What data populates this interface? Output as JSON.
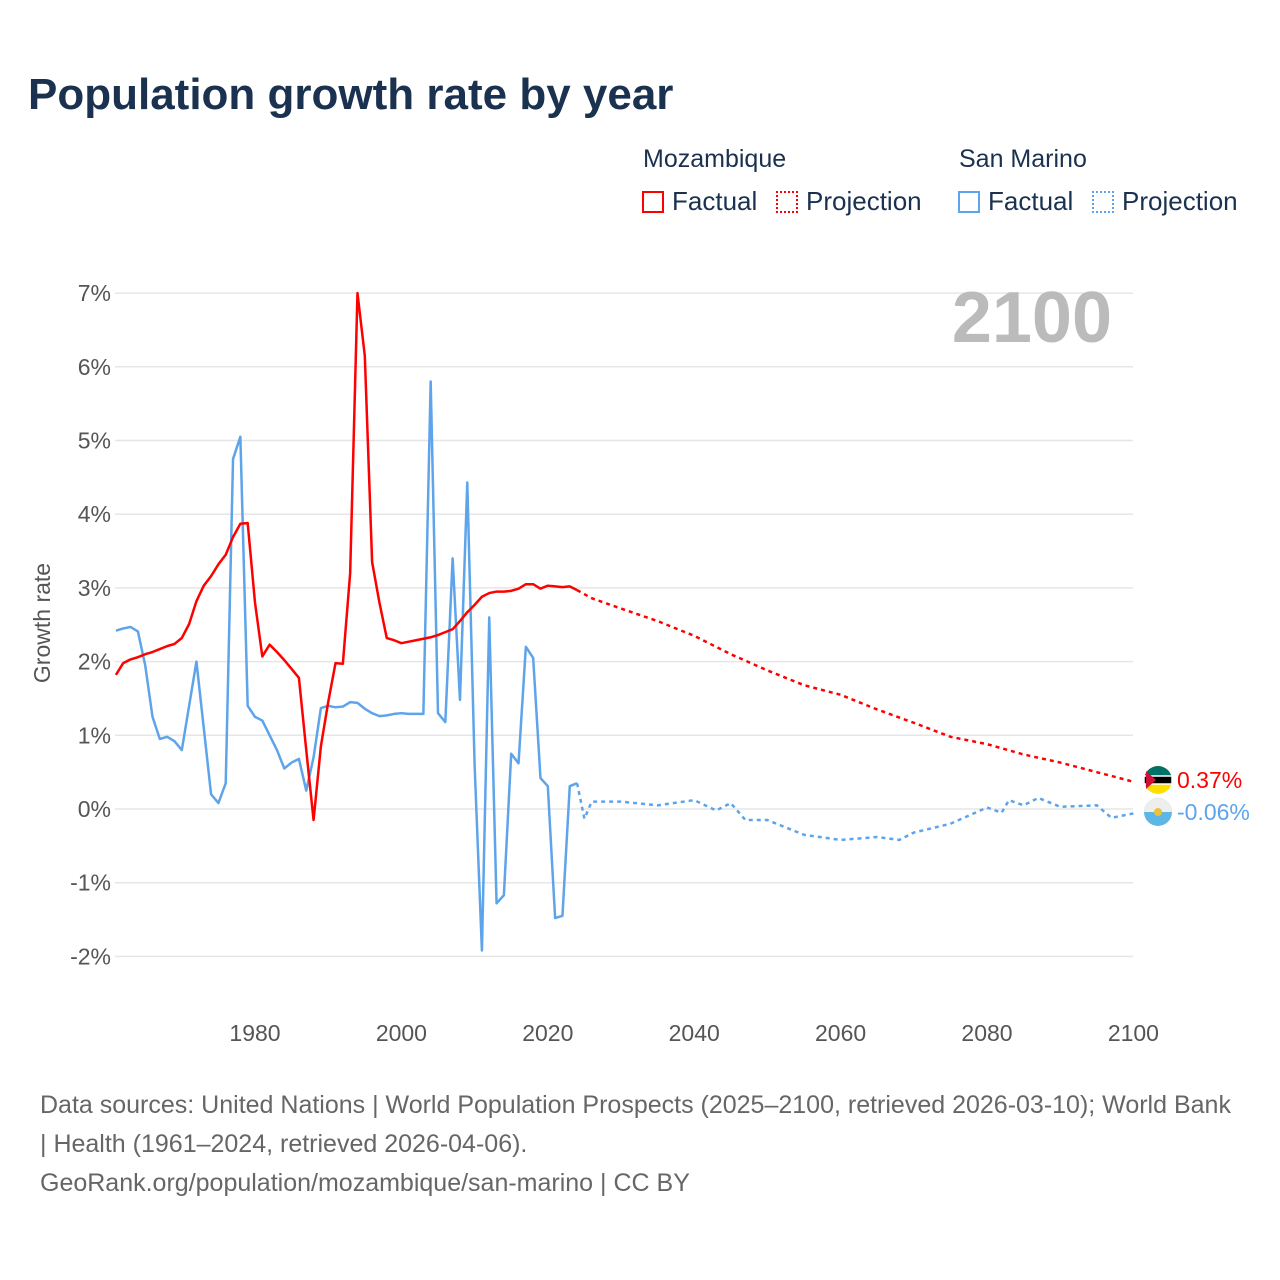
{
  "title": "Population growth rate by year",
  "legend": {
    "groups": [
      {
        "name": "Mozambique",
        "factual": "Factual",
        "projection": "Projection",
        "color": "#ff0000"
      },
      {
        "name": "San Marino",
        "factual": "Factual",
        "projection": "Projection",
        "color": "#5ea4ea"
      }
    ]
  },
  "year_label": "2100",
  "footer": {
    "line1": "Data sources: United Nations | World Population Prospects (2025–2100, retrieved 2026-03-10); World Bank | Health (1961–2024, retrieved 2026-04-06).",
    "line2": "GeoRank.org/population/mozambique/san-marino | CC BY"
  },
  "chart_data": {
    "type": "line",
    "title": "Population growth rate by year",
    "xlabel": "",
    "ylabel": "Growth rate",
    "xlim": [
      1961,
      2100
    ],
    "ylim": [
      -2.5,
      7.3
    ],
    "xticks": [
      1980,
      2000,
      2020,
      2040,
      2060,
      2080,
      2100
    ],
    "xtick_labels": [
      "1980",
      "2000",
      "2020",
      "2040",
      "2060",
      "2080",
      "2100"
    ],
    "yticks": [
      -2,
      -1,
      0,
      1,
      2,
      3,
      4,
      5,
      6,
      7
    ],
    "ytick_labels": [
      "-2%",
      "-1%",
      "0%",
      "1%",
      "2%",
      "3%",
      "4%",
      "5%",
      "6%",
      "7%"
    ],
    "series": [
      {
        "name": "Mozambique",
        "color": "#ff0000",
        "end_label": "0.37%",
        "factual": {
          "start_year": 1961,
          "values": [
            1.82,
            1.98,
            2.03,
            2.06,
            2.1,
            2.13,
            2.17,
            2.21,
            2.24,
            2.32,
            2.51,
            2.82,
            3.03,
            3.16,
            3.32,
            3.45,
            3.69,
            3.87,
            3.88,
            2.8,
            2.07,
            2.23,
            2.13,
            2.02,
            1.9,
            1.78,
            0.8,
            -0.15,
            0.85,
            1.45,
            1.98,
            1.97,
            3.2,
            7.0,
            6.15,
            3.35,
            2.8,
            2.32,
            2.29,
            2.25,
            2.27,
            2.29,
            2.31,
            2.33,
            2.36,
            2.4,
            2.44,
            2.55,
            2.67,
            2.77,
            2.88,
            2.93,
            2.95,
            2.95,
            2.96,
            2.99,
            3.05,
            3.05,
            2.99,
            3.03,
            3.02,
            3.01,
            3.02,
            2.97
          ]
        },
        "projection": {
          "years": [
            2024,
            2026,
            2030,
            2035,
            2040,
            2045,
            2050,
            2055,
            2060,
            2065,
            2070,
            2075,
            2080,
            2085,
            2090,
            2095,
            2100
          ],
          "values": [
            2.97,
            2.86,
            2.72,
            2.55,
            2.35,
            2.1,
            1.88,
            1.68,
            1.55,
            1.35,
            1.17,
            0.98,
            0.88,
            0.74,
            0.63,
            0.5,
            0.37
          ]
        }
      },
      {
        "name": "San Marino",
        "color": "#5ea4ea",
        "end_label": "-0.06%",
        "factual": {
          "start_year": 1961,
          "values": [
            2.42,
            2.45,
            2.47,
            2.41,
            1.95,
            1.25,
            0.95,
            0.98,
            0.92,
            0.8,
            1.4,
            2.0,
            1.1,
            0.2,
            0.08,
            0.35,
            4.75,
            5.05,
            1.4,
            1.25,
            1.2,
            1.0,
            0.8,
            0.55,
            0.63,
            0.68,
            0.25,
            0.7,
            1.37,
            1.4,
            1.38,
            1.39,
            1.45,
            1.44,
            1.36,
            1.3,
            1.26,
            1.27,
            1.29,
            1.3,
            1.29,
            1.29,
            1.29,
            5.8,
            1.3,
            1.18,
            3.4,
            1.48,
            4.43,
            0.6,
            -1.92,
            2.6,
            -1.28,
            -1.17,
            0.75,
            0.62,
            2.2,
            2.05,
            0.42,
            0.31,
            -1.48,
            -1.45,
            0.31,
            0.35
          ]
        },
        "projection": {
          "years": [
            2024,
            2025,
            2026,
            2030,
            2035,
            2040,
            2043,
            2045,
            2047,
            2050,
            2055,
            2060,
            2065,
            2068,
            2070,
            2075,
            2080,
            2082,
            2083,
            2085,
            2087,
            2090,
            2095,
            2097,
            2100
          ],
          "values": [
            0.35,
            -0.13,
            0.1,
            0.1,
            0.05,
            0.12,
            -0.02,
            0.08,
            -0.15,
            -0.15,
            -0.35,
            -0.42,
            -0.38,
            -0.42,
            -0.32,
            -0.2,
            0.02,
            -0.05,
            0.12,
            0.05,
            0.15,
            0.03,
            0.05,
            -0.12,
            -0.06
          ]
        }
      }
    ]
  }
}
